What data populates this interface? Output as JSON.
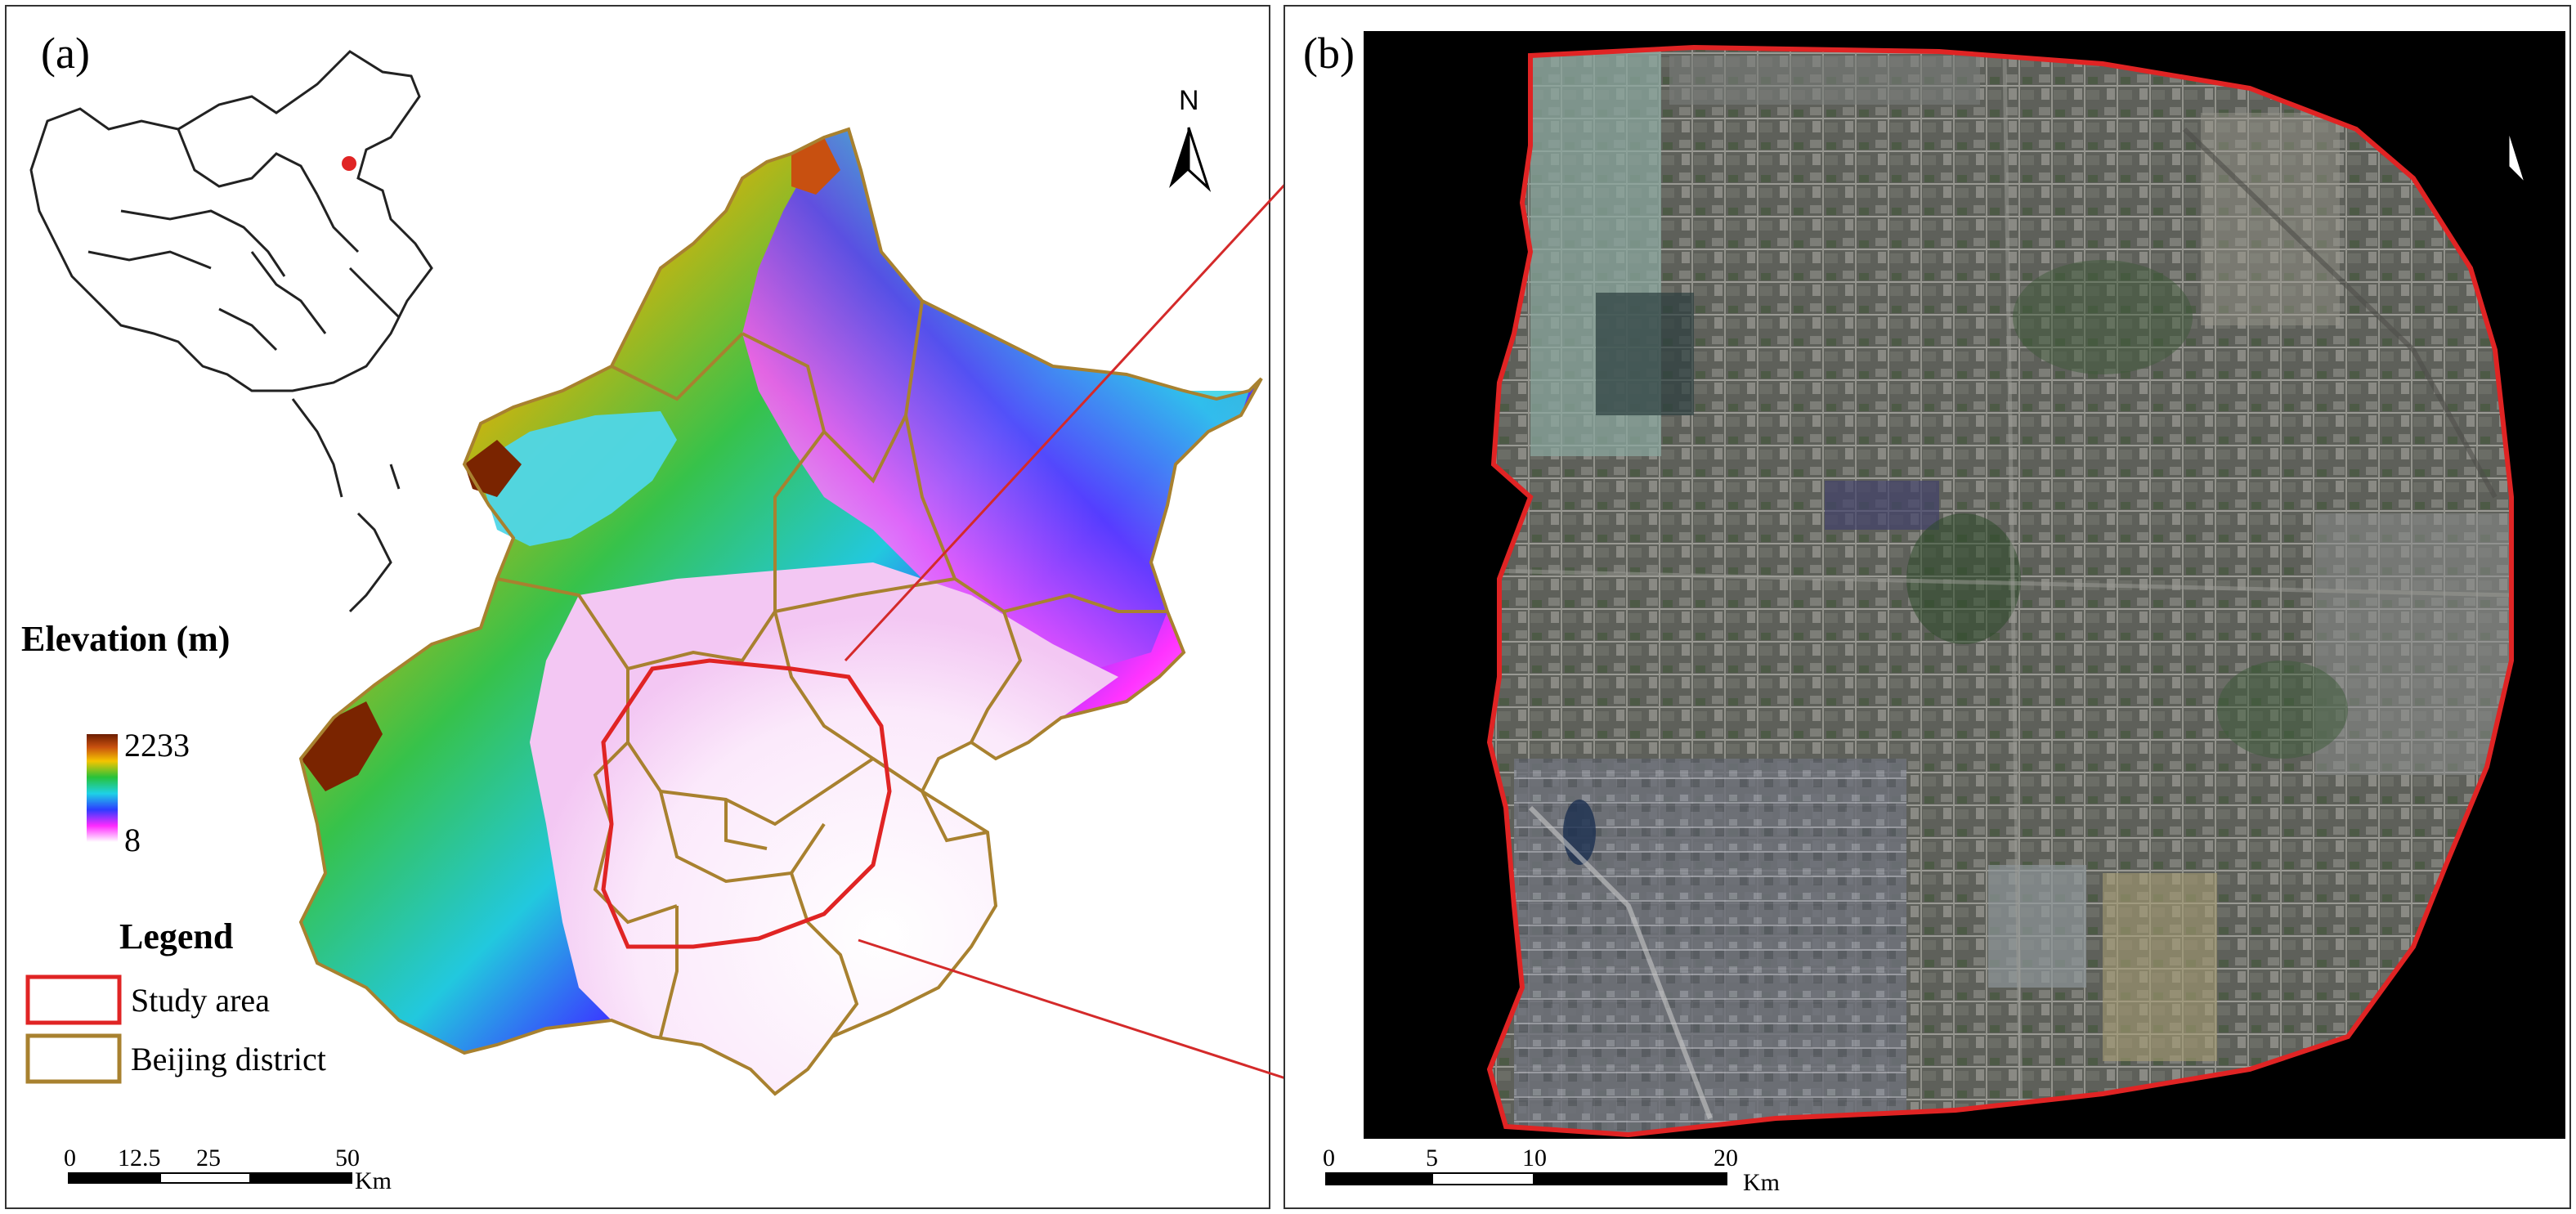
{
  "panel_a": {
    "label": "(a)",
    "elevation": {
      "title": "Elevation (m)",
      "max": "2233",
      "min": "8"
    },
    "legend": {
      "title": "Legend",
      "items": [
        {
          "label": "Study area",
          "color": "#e02424"
        },
        {
          "label": "Beijing district",
          "color": "#a8812f"
        }
      ]
    },
    "scale": {
      "ticks": [
        "0",
        "12.5",
        "25",
        "50"
      ],
      "unit": "Km"
    },
    "north": "N"
  },
  "panel_b": {
    "label": "(b)",
    "scale": {
      "ticks": [
        "0",
        "5",
        "10",
        "20"
      ],
      "unit": "Km"
    },
    "north": "N",
    "boundary_color": "#e02424"
  },
  "colors": {
    "district_border": "#a8812f",
    "study_area": "#e02424",
    "connector": "#d42a2a",
    "elev_high": "#7a2a00",
    "elev_low": "#ff22ff"
  },
  "map_inset": {
    "marker_color": "#e02424"
  }
}
